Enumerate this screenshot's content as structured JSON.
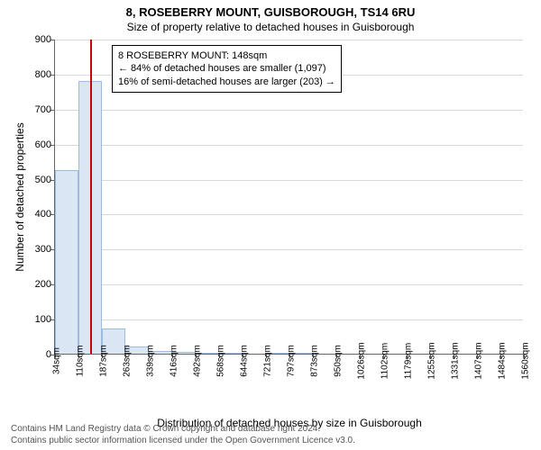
{
  "title": "8, ROSEBERRY MOUNT, GUISBOROUGH, TS14 6RU",
  "subtitle": "Size of property relative to detached houses in Guisborough",
  "ylabel": "Number of detached properties",
  "xlabel": "Distribution of detached houses by size in Guisborough",
  "chart": {
    "type": "histogram",
    "background_color": "#ffffff",
    "grid_color": "#d9d9d9",
    "axis_color": "#666666",
    "font_size_ticks": 10,
    "font_size_labels": 12,
    "ylim": [
      0,
      900
    ],
    "ytick_step": 100,
    "x_ticks": [
      "34sqm",
      "110sqm",
      "187sqm",
      "263sqm",
      "339sqm",
      "416sqm",
      "492sqm",
      "568sqm",
      "644sqm",
      "721sqm",
      "797sqm",
      "873sqm",
      "950sqm",
      "1026sqm",
      "1102sqm",
      "1179sqm",
      "1255sqm",
      "1331sqm",
      "1407sqm",
      "1484sqm",
      "1560sqm"
    ],
    "bars": {
      "count": 20,
      "values": [
        525,
        780,
        72,
        20,
        8,
        4,
        2,
        2,
        0,
        1,
        1,
        0,
        0,
        0,
        0,
        0,
        0,
        0,
        0,
        0
      ],
      "fill_color": "#dbe6f4",
      "border_color": "#9bbce0",
      "bar_width_ratio": 1.0
    },
    "reference_line": {
      "x_value": 148,
      "x_range": [
        34,
        1560
      ],
      "color": "#cc0000"
    }
  },
  "annotation": {
    "lines": [
      "8 ROSEBERRY MOUNT: 148sqm",
      "← 84% of detached houses are smaller (1,097)",
      "16% of semi-detached houses are larger (203) →"
    ],
    "border_color": "#000000",
    "bg": "#ffffff"
  },
  "footer": {
    "line1": "Contains HM Land Registry data © Crown copyright and database right 2024.",
    "line2": "Contains public sector information licensed under the Open Government Licence v3.0."
  }
}
